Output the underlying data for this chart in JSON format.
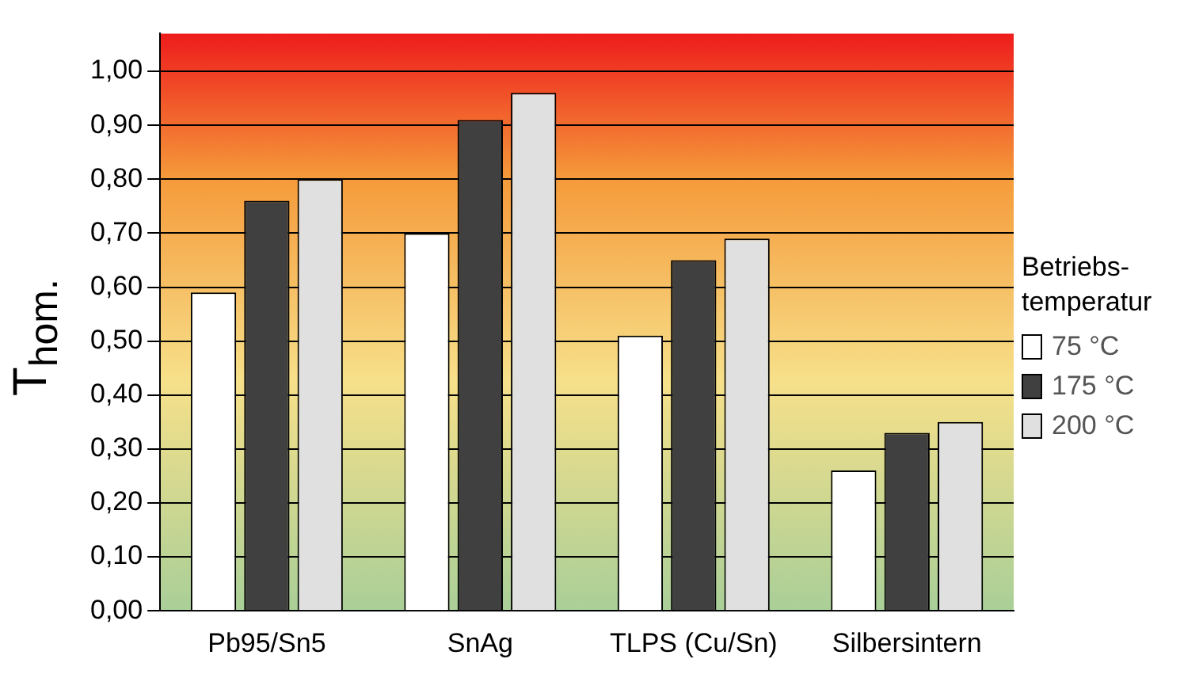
{
  "chart_data": {
    "type": "bar",
    "ylabel": "T$_{hom.}$",
    "legend_title": "Betriebs-temperatur",
    "legend": "right",
    "grid": "y",
    "categories": [
      "Pb95/Sn5",
      "SnAg",
      "TLPS (Cu/Sn)",
      "Silbersintern"
    ],
    "series": [
      {
        "name": "75 °C",
        "color": "#ffffff",
        "values": [
          0.59,
          0.7,
          0.51,
          0.26
        ]
      },
      {
        "name": "175 °C",
        "color": "#404040",
        "values": [
          0.76,
          0.91,
          0.65,
          0.33
        ]
      },
      {
        "name": "200 °C",
        "color": "#e0e0e0",
        "values": [
          0.8,
          0.96,
          0.69,
          0.35
        ]
      }
    ],
    "ylim": [
      0,
      1.07
    ],
    "yticks": [
      {
        "value": 0,
        "label": "0,00"
      },
      {
        "value": 0.1,
        "label": "0,10"
      },
      {
        "value": 0.2,
        "label": "0,20"
      },
      {
        "value": 0.3,
        "label": "0,30"
      },
      {
        "value": 0.4,
        "label": "0,40"
      },
      {
        "value": 0.5,
        "label": "0,50"
      },
      {
        "value": 0.6,
        "label": "0,60"
      },
      {
        "value": 0.7,
        "label": "0,70"
      },
      {
        "value": 0.8,
        "label": "0,80"
      },
      {
        "value": 0.9,
        "label": "0,90"
      },
      {
        "value": 1,
        "label": "1,00"
      }
    ]
  }
}
